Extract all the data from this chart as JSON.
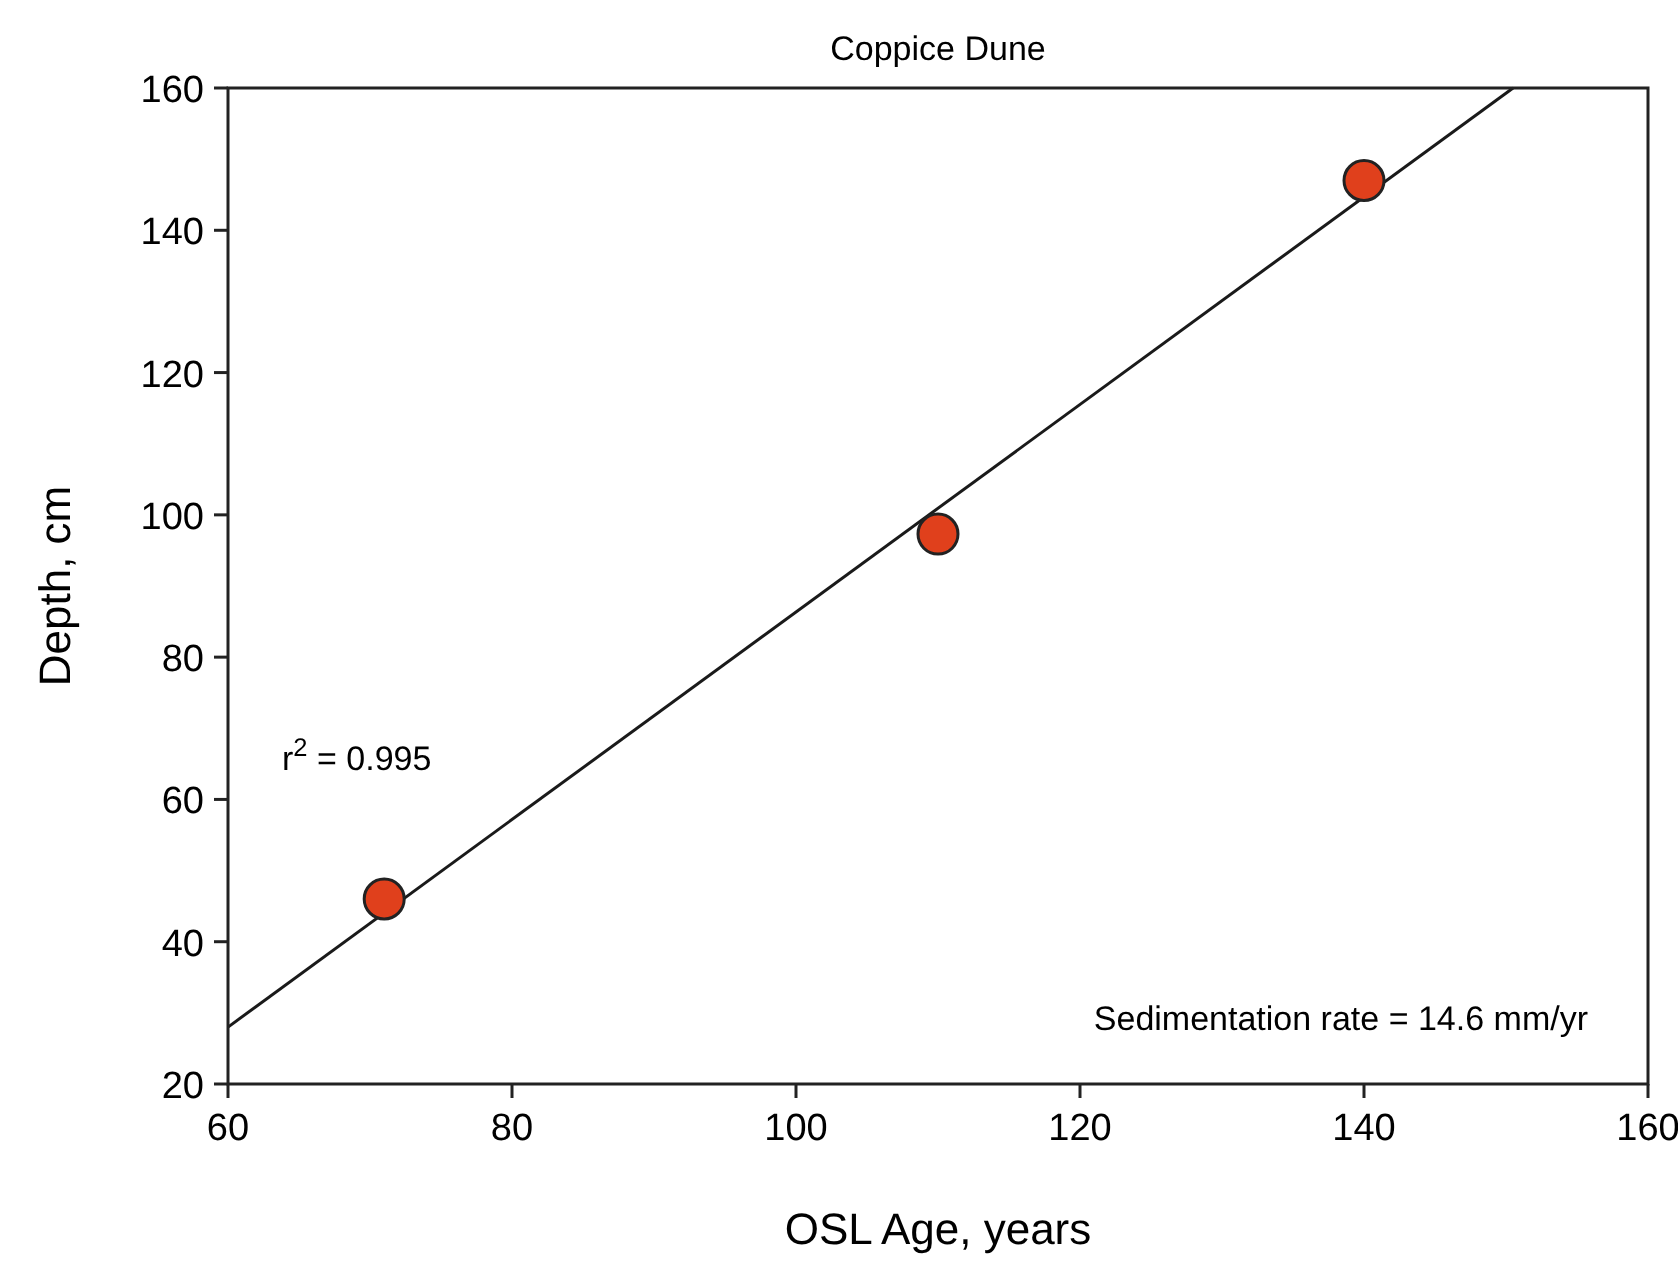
{
  "chart_data": {
    "type": "scatter",
    "title": "Coppice Dune",
    "xlabel": "OSL Age, years",
    "ylabel": "Depth, cm",
    "xlim": [
      60,
      160
    ],
    "xticks": [
      60,
      80,
      100,
      120,
      140,
      160
    ],
    "ylim": [
      20,
      160
    ],
    "yticks": [
      20,
      40,
      60,
      80,
      100,
      120,
      140,
      160
    ],
    "grid": false,
    "series": [
      {
        "type": "line",
        "color": "#1a1a1a",
        "x": [
          60,
          150.5
        ],
        "values": [
          28,
          160
        ],
        "marker": "none",
        "line_style": "solid"
      },
      {
        "type": "scatter",
        "color": "#e0401c",
        "x": [
          71,
          110,
          140
        ],
        "values": [
          46,
          97.3,
          147
        ],
        "marker": "circle"
      }
    ],
    "annotations": [
      "r$^{2}$ = 0.995",
      "Sedimentation rate = 14.6 mm/yr"
    ]
  }
}
